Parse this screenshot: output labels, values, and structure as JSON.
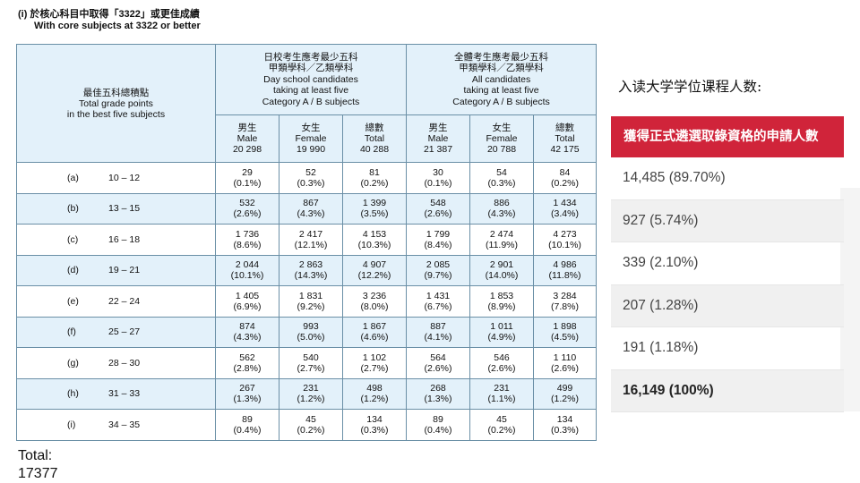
{
  "heading": {
    "line1": "(i)  於核心科目中取得「3322」或更佳成績",
    "line2": "With core subjects at 3322 or better"
  },
  "table": {
    "row_header": [
      "最佳五科總積點",
      "Total grade points",
      "in the best five subjects"
    ],
    "group_day": [
      "日校考生應考最少五科",
      "甲類學科／乙類學科",
      "Day school candidates",
      "taking at least five",
      "Category A / B subjects"
    ],
    "group_all": [
      "全體考生應考最少五科",
      "甲類學科／乙類學科",
      "All candidates",
      "taking at least five",
      "Category A / B subjects"
    ],
    "columns": [
      [
        "男生",
        "Male",
        "20 298"
      ],
      [
        "女生",
        "Female",
        "19 990"
      ],
      [
        "總數",
        "Total",
        "40 288"
      ],
      [
        "男生",
        "Male",
        "21 387"
      ],
      [
        "女生",
        "Female",
        "20 788"
      ],
      [
        "總數",
        "Total",
        "42 175"
      ]
    ],
    "rows": [
      {
        "code": "(a)",
        "range": "10 – 12",
        "cells": [
          [
            "29",
            "(0.1%)"
          ],
          [
            "52",
            "(0.3%)"
          ],
          [
            "81",
            "(0.2%)"
          ],
          [
            "30",
            "(0.1%)"
          ],
          [
            "54",
            "(0.3%)"
          ],
          [
            "84",
            "(0.2%)"
          ]
        ]
      },
      {
        "code": "(b)",
        "range": "13 – 15",
        "cells": [
          [
            "532",
            "(2.6%)"
          ],
          [
            "867",
            "(4.3%)"
          ],
          [
            "1 399",
            "(3.5%)"
          ],
          [
            "548",
            "(2.6%)"
          ],
          [
            "886",
            "(4.3%)"
          ],
          [
            "1 434",
            "(3.4%)"
          ]
        ]
      },
      {
        "code": "(c)",
        "range": "16 – 18",
        "cells": [
          [
            "1 736",
            "(8.6%)"
          ],
          [
            "2 417",
            "(12.1%)"
          ],
          [
            "4 153",
            "(10.3%)"
          ],
          [
            "1 799",
            "(8.4%)"
          ],
          [
            "2 474",
            "(11.9%)"
          ],
          [
            "4 273",
            "(10.1%)"
          ]
        ]
      },
      {
        "code": "(d)",
        "range": "19 – 21",
        "cells": [
          [
            "2 044",
            "(10.1%)"
          ],
          [
            "2 863",
            "(14.3%)"
          ],
          [
            "4 907",
            "(12.2%)"
          ],
          [
            "2 085",
            "(9.7%)"
          ],
          [
            "2 901",
            "(14.0%)"
          ],
          [
            "4 986",
            "(11.8%)"
          ]
        ]
      },
      {
        "code": "(e)",
        "range": "22 – 24",
        "cells": [
          [
            "1 405",
            "(6.9%)"
          ],
          [
            "1 831",
            "(9.2%)"
          ],
          [
            "3 236",
            "(8.0%)"
          ],
          [
            "1 431",
            "(6.7%)"
          ],
          [
            "1 853",
            "(8.9%)"
          ],
          [
            "3 284",
            "(7.8%)"
          ]
        ]
      },
      {
        "code": "(f)",
        "range": "25 – 27",
        "cells": [
          [
            "874",
            "(4.3%)"
          ],
          [
            "993",
            "(5.0%)"
          ],
          [
            "1 867",
            "(4.6%)"
          ],
          [
            "887",
            "(4.1%)"
          ],
          [
            "1 011",
            "(4.9%)"
          ],
          [
            "1 898",
            "(4.5%)"
          ]
        ]
      },
      {
        "code": "(g)",
        "range": "28 – 30",
        "cells": [
          [
            "562",
            "(2.8%)"
          ],
          [
            "540",
            "(2.7%)"
          ],
          [
            "1 102",
            "(2.7%)"
          ],
          [
            "564",
            "(2.6%)"
          ],
          [
            "546",
            "(2.6%)"
          ],
          [
            "1 110",
            "(2.6%)"
          ]
        ]
      },
      {
        "code": "(h)",
        "range": "31 – 33",
        "cells": [
          [
            "267",
            "(1.3%)"
          ],
          [
            "231",
            "(1.2%)"
          ],
          [
            "498",
            "(1.2%)"
          ],
          [
            "268",
            "(1.3%)"
          ],
          [
            "231",
            "(1.1%)"
          ],
          [
            "499",
            "(1.2%)"
          ]
        ]
      },
      {
        "code": "(i)",
        "range": "34 – 35",
        "cells": [
          [
            "89",
            "(0.4%)"
          ],
          [
            "45",
            "(0.2%)"
          ],
          [
            "134",
            "(0.3%)"
          ],
          [
            "89",
            "(0.4%)"
          ],
          [
            "45",
            "(0.2%)"
          ],
          [
            "134",
            "(0.3%)"
          ]
        ]
      }
    ]
  },
  "total": {
    "label": "Total:",
    "value": "17377"
  },
  "right": {
    "title": "入读大学学位课程人数:",
    "header": "獲得正式遴選取錄資格的申請人數",
    "rows": [
      "14,485 (89.70%)",
      "927 (5.74%)",
      "339 (2.10%)",
      "207 (1.28%)",
      "191 (1.18%)",
      "16,149 (100%)"
    ],
    "accent_color": "#d0243a"
  }
}
